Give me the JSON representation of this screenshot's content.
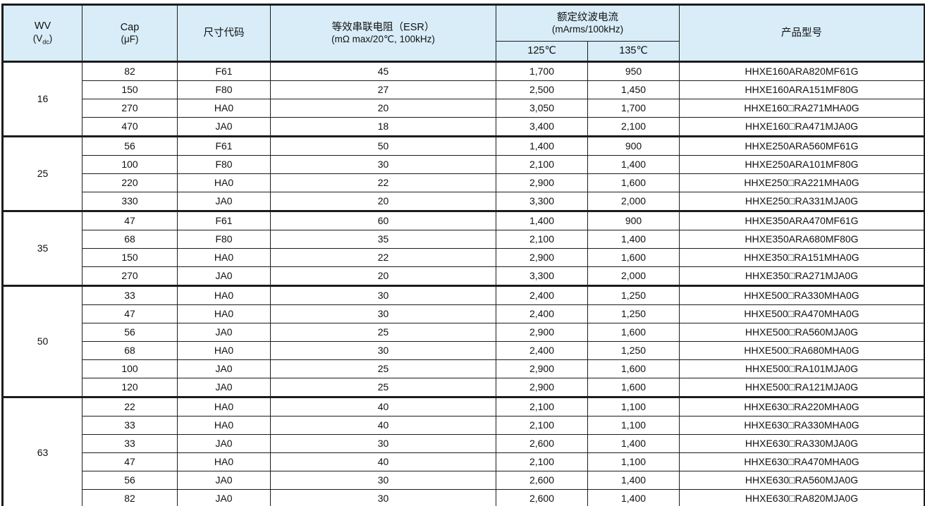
{
  "colors": {
    "header_bg": "#d8edf8",
    "border": "#1c1c1c",
    "text": "#111111"
  },
  "table": {
    "headers": {
      "wv_line1": "WV",
      "wv_paren_open": "(V",
      "wv_sub": "dc",
      "wv_paren_close": ")",
      "cap_line1": "Cap",
      "cap_line2": "(μF)",
      "size_code": "尺寸代码",
      "esr_line1": "等效串联电阻（ESR）",
      "esr_line2": "(mΩ max/20℃, 100kHz)",
      "ripple_line1": "额定纹波电流",
      "ripple_line2": "(mArms/100kHz)",
      "temp_125": "125℃",
      "temp_135": "135℃",
      "part_number": "产品型号"
    },
    "groups": [
      {
        "wv": "16",
        "rows": [
          [
            "82",
            "F61",
            "45",
            "1,700",
            "950",
            "HHXE160ARA820MF61G"
          ],
          [
            "150",
            "F80",
            "27",
            "2,500",
            "1,450",
            "HHXE160ARA151MF80G"
          ],
          [
            "270",
            "HA0",
            "20",
            "3,050",
            "1,700",
            "HHXE160□RA271MHA0G"
          ],
          [
            "470",
            "JA0",
            "18",
            "3,400",
            "2,100",
            "HHXE160□RA471MJA0G"
          ]
        ]
      },
      {
        "wv": "25",
        "rows": [
          [
            "56",
            "F61",
            "50",
            "1,400",
            "900",
            "HHXE250ARA560MF61G"
          ],
          [
            "100",
            "F80",
            "30",
            "2,100",
            "1,400",
            "HHXE250ARA101MF80G"
          ],
          [
            "220",
            "HA0",
            "22",
            "2,900",
            "1,600",
            "HHXE250□RA221MHA0G"
          ],
          [
            "330",
            "JA0",
            "20",
            "3,300",
            "2,000",
            "HHXE250□RA331MJA0G"
          ]
        ]
      },
      {
        "wv": "35",
        "rows": [
          [
            "47",
            "F61",
            "60",
            "1,400",
            "900",
            "HHXE350ARA470MF61G"
          ],
          [
            "68",
            "F80",
            "35",
            "2,100",
            "1,400",
            "HHXE350ARA680MF80G"
          ],
          [
            "150",
            "HA0",
            "22",
            "2,900",
            "1,600",
            "HHXE350□RA151MHA0G"
          ],
          [
            "270",
            "JA0",
            "20",
            "3,300",
            "2,000",
            "HHXE350□RA271MJA0G"
          ]
        ]
      },
      {
        "wv": "50",
        "rows": [
          [
            "33",
            "HA0",
            "30",
            "2,400",
            "1,250",
            "HHXE500□RA330MHA0G"
          ],
          [
            "47",
            "HA0",
            "30",
            "2,400",
            "1,250",
            "HHXE500□RA470MHA0G"
          ],
          [
            "56",
            "JA0",
            "25",
            "2,900",
            "1,600",
            "HHXE500□RA560MJA0G"
          ],
          [
            "68",
            "HA0",
            "30",
            "2,400",
            "1,250",
            "HHXE500□RA680MHA0G"
          ],
          [
            "100",
            "JA0",
            "25",
            "2,900",
            "1,600",
            "HHXE500□RA101MJA0G"
          ],
          [
            "120",
            "JA0",
            "25",
            "2,900",
            "1,600",
            "HHXE500□RA121MJA0G"
          ]
        ]
      },
      {
        "wv": "63",
        "rows": [
          [
            "22",
            "HA0",
            "40",
            "2,100",
            "1,100",
            "HHXE630□RA220MHA0G"
          ],
          [
            "33",
            "HA0",
            "40",
            "2,100",
            "1,100",
            "HHXE630□RA330MHA0G"
          ],
          [
            "33",
            "JA0",
            "30",
            "2,600",
            "1,400",
            "HHXE630□RA330MJA0G"
          ],
          [
            "47",
            "HA0",
            "40",
            "2,100",
            "1,100",
            "HHXE630□RA470MHA0G"
          ],
          [
            "56",
            "JA0",
            "30",
            "2,600",
            "1,400",
            "HHXE630□RA560MJA0G"
          ],
          [
            "82",
            "JA0",
            "30",
            "2,600",
            "1,400",
            "HHXE630□RA820MJA0G"
          ]
        ]
      }
    ]
  }
}
